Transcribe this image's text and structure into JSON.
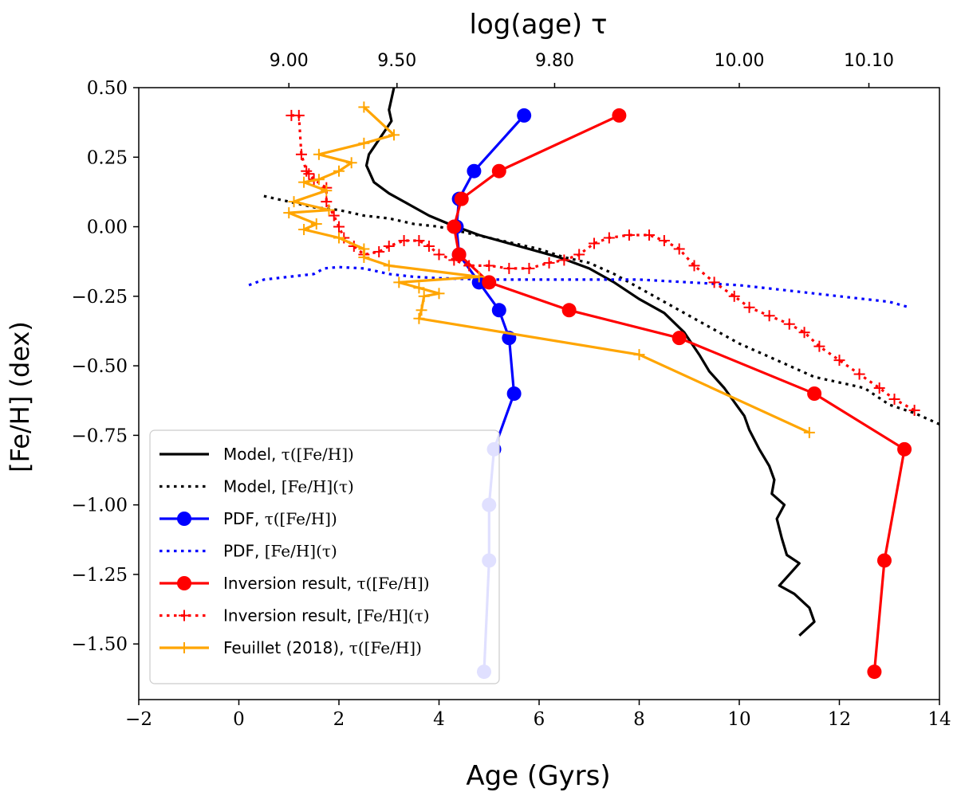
{
  "chart_data": {
    "type": "line",
    "xlabel": "Age (Gyrs)",
    "ylabel": "[Fe/H] (dex)",
    "top_axis_label": "log(age) τ",
    "xlim": [
      -2,
      14
    ],
    "ylim": [
      -1.7,
      0.5
    ],
    "x_ticks": [
      -2,
      0,
      2,
      4,
      6,
      8,
      10,
      12,
      14
    ],
    "x_tick_labels": [
      "−2",
      "0",
      "2",
      "4",
      "6",
      "8",
      "10",
      "12",
      "14"
    ],
    "y_ticks": [
      0.5,
      0.25,
      0.0,
      -0.25,
      -0.5,
      -0.75,
      -1.0,
      -1.25,
      -1.5
    ],
    "y_tick_labels": [
      "0.50",
      "0.25",
      "0.00",
      "−0.25",
      "−0.50",
      "−0.75",
      "−1.00",
      "−1.25",
      "−1.50"
    ],
    "top_ticks": [
      {
        "label": "9.00",
        "age": 1.0
      },
      {
        "label": "9.50",
        "age": 3.16
      },
      {
        "label": "9.80",
        "age": 6.31
      },
      {
        "label": "10.00",
        "age": 10.0
      },
      {
        "label": "10.10",
        "age": 12.59
      }
    ],
    "series": [
      {
        "name": "Model, τ([Fe/H])",
        "legend_label": "Model, ",
        "legend_math": "τ([Fe/H])",
        "color": "#000000",
        "style": "solid",
        "marker": "none",
        "points": [
          [
            3.1,
            0.5
          ],
          [
            3.0,
            0.42
          ],
          [
            3.05,
            0.38
          ],
          [
            2.9,
            0.34
          ],
          [
            2.75,
            0.3
          ],
          [
            2.6,
            0.26
          ],
          [
            2.55,
            0.22
          ],
          [
            2.7,
            0.16
          ],
          [
            3.0,
            0.12
          ],
          [
            3.4,
            0.08
          ],
          [
            3.8,
            0.04
          ],
          [
            4.2,
            0.01
          ],
          [
            4.8,
            -0.03
          ],
          [
            5.6,
            -0.07
          ],
          [
            6.4,
            -0.11
          ],
          [
            7.0,
            -0.15
          ],
          [
            7.5,
            -0.2
          ],
          [
            8.0,
            -0.26
          ],
          [
            8.5,
            -0.31
          ],
          [
            8.9,
            -0.38
          ],
          [
            9.2,
            -0.46
          ],
          [
            9.4,
            -0.52
          ],
          [
            9.7,
            -0.58
          ],
          [
            9.9,
            -0.63
          ],
          [
            10.1,
            -0.68
          ],
          [
            10.2,
            -0.73
          ],
          [
            10.4,
            -0.8
          ],
          [
            10.6,
            -0.86
          ],
          [
            10.7,
            -0.91
          ],
          [
            10.65,
            -0.96
          ],
          [
            10.9,
            -1.0
          ],
          [
            10.75,
            -1.05
          ],
          [
            10.85,
            -1.12
          ],
          [
            10.95,
            -1.18
          ],
          [
            11.2,
            -1.21
          ],
          [
            11.0,
            -1.25
          ],
          [
            10.8,
            -1.29
          ],
          [
            11.1,
            -1.32
          ],
          [
            11.4,
            -1.37
          ],
          [
            11.5,
            -1.42
          ],
          [
            11.2,
            -1.47
          ]
        ]
      },
      {
        "name": "Model, [Fe/H](τ)",
        "legend_label": "Model, ",
        "legend_math": "[Fe/H](τ)",
        "color": "#000000",
        "style": "dotted",
        "marker": "none",
        "points": [
          [
            0.5,
            0.11
          ],
          [
            1.0,
            0.09
          ],
          [
            1.5,
            0.07
          ],
          [
            2.0,
            0.06
          ],
          [
            2.5,
            0.04
          ],
          [
            3.0,
            0.03
          ],
          [
            3.5,
            0.01
          ],
          [
            4.0,
            0.0
          ],
          [
            4.5,
            -0.02
          ],
          [
            5.0,
            -0.04
          ],
          [
            5.5,
            -0.06
          ],
          [
            6.0,
            -0.08
          ],
          [
            6.5,
            -0.11
          ],
          [
            7.0,
            -0.13
          ],
          [
            7.5,
            -0.17
          ],
          [
            8.0,
            -0.22
          ],
          [
            8.5,
            -0.27
          ],
          [
            9.0,
            -0.32
          ],
          [
            9.5,
            -0.37
          ],
          [
            10.0,
            -0.42
          ],
          [
            10.5,
            -0.46
          ],
          [
            11.0,
            -0.5
          ],
          [
            11.5,
            -0.54
          ],
          [
            12.0,
            -0.56
          ],
          [
            12.5,
            -0.58
          ],
          [
            13.0,
            -0.64
          ],
          [
            13.5,
            -0.67
          ],
          [
            14.0,
            -0.71
          ]
        ]
      },
      {
        "name": "PDF, τ([Fe/H])",
        "legend_label": "PDF, ",
        "legend_math": "τ([Fe/H])",
        "color": "#0000ff",
        "style": "solid",
        "marker": "circle",
        "points": [
          [
            5.7,
            0.4
          ],
          [
            4.7,
            0.2
          ],
          [
            4.4,
            0.1
          ],
          [
            4.35,
            0.0
          ],
          [
            4.4,
            -0.1
          ],
          [
            4.8,
            -0.2
          ],
          [
            5.2,
            -0.3
          ],
          [
            5.4,
            -0.4
          ],
          [
            5.5,
            -0.6
          ],
          [
            5.1,
            -0.8
          ],
          [
            5.0,
            -1.0
          ],
          [
            5.0,
            -1.2
          ],
          [
            4.9,
            -1.6
          ]
        ]
      },
      {
        "name": "PDF, [Fe/H](τ)",
        "legend_label": "PDF, ",
        "legend_math": "[Fe/H](τ)",
        "color": "#0000ff",
        "style": "dotted",
        "marker": "none",
        "points": [
          [
            0.2,
            -0.21
          ],
          [
            0.5,
            -0.19
          ],
          [
            1.0,
            -0.18
          ],
          [
            1.5,
            -0.17
          ],
          [
            1.7,
            -0.15
          ],
          [
            2.0,
            -0.145
          ],
          [
            2.5,
            -0.15
          ],
          [
            3.0,
            -0.17
          ],
          [
            3.5,
            -0.18
          ],
          [
            4.0,
            -0.185
          ],
          [
            5.0,
            -0.19
          ],
          [
            6.0,
            -0.19
          ],
          [
            7.0,
            -0.19
          ],
          [
            8.0,
            -0.19
          ],
          [
            9.0,
            -0.2
          ],
          [
            10.0,
            -0.21
          ],
          [
            11.0,
            -0.23
          ],
          [
            12.0,
            -0.25
          ],
          [
            13.0,
            -0.27
          ],
          [
            13.4,
            -0.29
          ]
        ]
      },
      {
        "name": "Inversion result, τ([Fe/H])",
        "legend_label": "Inversion result, ",
        "legend_math": "τ([Fe/H])",
        "color": "#ff0000",
        "style": "solid",
        "marker": "circle",
        "points": [
          [
            7.6,
            0.4
          ],
          [
            5.2,
            0.2
          ],
          [
            4.45,
            0.1
          ],
          [
            4.3,
            0.0
          ],
          [
            4.4,
            -0.1
          ],
          [
            5.0,
            -0.2
          ],
          [
            6.6,
            -0.3
          ],
          [
            8.8,
            -0.4
          ],
          [
            11.5,
            -0.6
          ],
          [
            13.3,
            -0.8
          ],
          [
            12.9,
            -1.2
          ],
          [
            12.7,
            -1.6
          ]
        ]
      },
      {
        "name": "Inversion result, [Fe/H](τ)",
        "legend_label": "Inversion result, ",
        "legend_math": "[Fe/H](τ)",
        "color": "#ff0000",
        "style": "dotted",
        "marker": "plus",
        "points": [
          [
            1.05,
            0.4
          ],
          [
            1.2,
            0.4
          ],
          [
            1.25,
            0.26
          ],
          [
            1.35,
            0.2
          ],
          [
            1.4,
            0.19
          ],
          [
            1.5,
            0.17
          ],
          [
            1.75,
            0.14
          ],
          [
            1.75,
            0.09
          ],
          [
            1.9,
            0.04
          ],
          [
            2.0,
            0.0
          ],
          [
            2.1,
            -0.04
          ],
          [
            2.3,
            -0.07
          ],
          [
            2.5,
            -0.1
          ],
          [
            2.8,
            -0.09
          ],
          [
            3.0,
            -0.07
          ],
          [
            3.3,
            -0.05
          ],
          [
            3.6,
            -0.05
          ],
          [
            3.8,
            -0.07
          ],
          [
            4.0,
            -0.1
          ],
          [
            4.3,
            -0.12
          ],
          [
            4.6,
            -0.14
          ],
          [
            5.0,
            -0.14
          ],
          [
            5.4,
            -0.15
          ],
          [
            5.8,
            -0.15
          ],
          [
            6.2,
            -0.13
          ],
          [
            6.5,
            -0.12
          ],
          [
            6.8,
            -0.1
          ],
          [
            7.1,
            -0.06
          ],
          [
            7.4,
            -0.04
          ],
          [
            7.8,
            -0.03
          ],
          [
            8.2,
            -0.03
          ],
          [
            8.5,
            -0.05
          ],
          [
            8.8,
            -0.08
          ],
          [
            9.1,
            -0.14
          ],
          [
            9.5,
            -0.2
          ],
          [
            9.9,
            -0.25
          ],
          [
            10.2,
            -0.29
          ],
          [
            10.6,
            -0.32
          ],
          [
            11.0,
            -0.35
          ],
          [
            11.3,
            -0.38
          ],
          [
            11.6,
            -0.43
          ],
          [
            12.0,
            -0.48
          ],
          [
            12.4,
            -0.53
          ],
          [
            12.8,
            -0.58
          ],
          [
            13.1,
            -0.62
          ],
          [
            13.5,
            -0.66
          ]
        ]
      },
      {
        "name": "Feuillet (2018), τ([Fe/H])",
        "legend_label": "Feuillet (2018), ",
        "legend_math": "τ([Fe/H])",
        "color": "#ffa500",
        "style": "solid",
        "marker": "plus",
        "points": [
          [
            2.5,
            0.43
          ],
          [
            3.1,
            0.33
          ],
          [
            2.5,
            0.3
          ],
          [
            1.6,
            0.26
          ],
          [
            2.25,
            0.23
          ],
          [
            2.0,
            0.2
          ],
          [
            1.6,
            0.17
          ],
          [
            1.3,
            0.16
          ],
          [
            1.75,
            0.13
          ],
          [
            1.1,
            0.09
          ],
          [
            1.8,
            0.06
          ],
          [
            1.0,
            0.05
          ],
          [
            1.55,
            0.01
          ],
          [
            1.3,
            -0.01
          ],
          [
            2.0,
            -0.04
          ],
          [
            2.5,
            -0.08
          ],
          [
            2.5,
            -0.11
          ],
          [
            3.0,
            -0.14
          ],
          [
            4.8,
            -0.18
          ],
          [
            3.2,
            -0.2
          ],
          [
            3.6,
            -0.22
          ],
          [
            4.0,
            -0.24
          ],
          [
            3.7,
            -0.25
          ],
          [
            3.65,
            -0.3
          ],
          [
            3.6,
            -0.33
          ],
          [
            8.0,
            -0.46
          ],
          [
            11.4,
            -0.74
          ]
        ]
      }
    ]
  }
}
